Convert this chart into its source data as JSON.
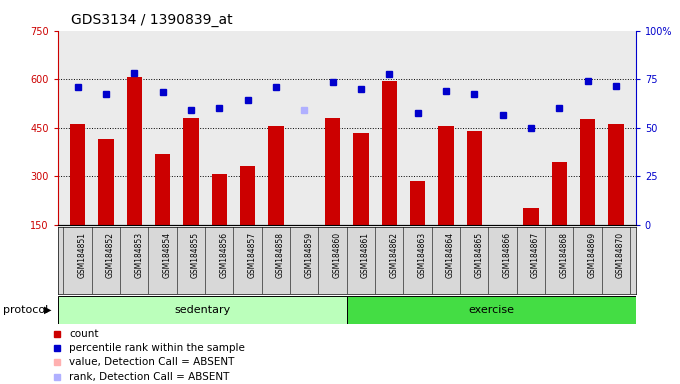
{
  "title": "GDS3134 / 1390839_at",
  "samples": [
    "GSM184851",
    "GSM184852",
    "GSM184853",
    "GSM184854",
    "GSM184855",
    "GSM184856",
    "GSM184857",
    "GSM184858",
    "GSM184859",
    "GSM184860",
    "GSM184861",
    "GSM184862",
    "GSM184863",
    "GSM184864",
    "GSM184865",
    "GSM184866",
    "GSM184867",
    "GSM184868",
    "GSM184869",
    "GSM184870"
  ],
  "bar_values": [
    462,
    415,
    607,
    370,
    480,
    308,
    330,
    455,
    null,
    480,
    435,
    595,
    285,
    455,
    440,
    null,
    200,
    345,
    478,
    460
  ],
  "absent_bar": [
    null,
    null,
    null,
    null,
    null,
    null,
    null,
    null,
    150,
    null,
    null,
    null,
    null,
    null,
    null,
    150,
    null,
    null,
    null,
    null
  ],
  "dot_values": [
    575,
    555,
    620,
    560,
    505,
    510,
    535,
    575,
    null,
    590,
    570,
    615,
    495,
    565,
    555,
    490,
    450,
    510,
    595,
    580
  ],
  "absent_dot": [
    null,
    null,
    null,
    null,
    null,
    null,
    null,
    null,
    505,
    null,
    null,
    null,
    null,
    null,
    null,
    null,
    null,
    null,
    null,
    null
  ],
  "sedentary_count": 10,
  "exercise_count": 10,
  "ylim_left": [
    150,
    750
  ],
  "ylim_right": [
    0,
    100
  ],
  "yticks_left": [
    150,
    300,
    450,
    600,
    750
  ],
  "yticks_right": [
    0,
    25,
    50,
    75,
    100
  ],
  "bar_color": "#cc0000",
  "dot_color": "#0000cc",
  "absent_bar_color": "#ffb0b0",
  "absent_dot_color": "#b0b0ff",
  "sedentary_color": "#bbffbb",
  "exercise_color": "#44dd44",
  "protocol_label": "protocol",
  "sedentary_label": "sedentary",
  "exercise_label": "exercise",
  "legend_count": "count",
  "legend_percentile": "percentile rank within the sample",
  "legend_absent_value": "value, Detection Call = ABSENT",
  "legend_absent_rank": "rank, Detection Call = ABSENT",
  "background_color": "#ffffff",
  "title_fontsize": 10,
  "tick_fontsize": 7,
  "label_fontsize": 8,
  "legend_fontsize": 7.5
}
